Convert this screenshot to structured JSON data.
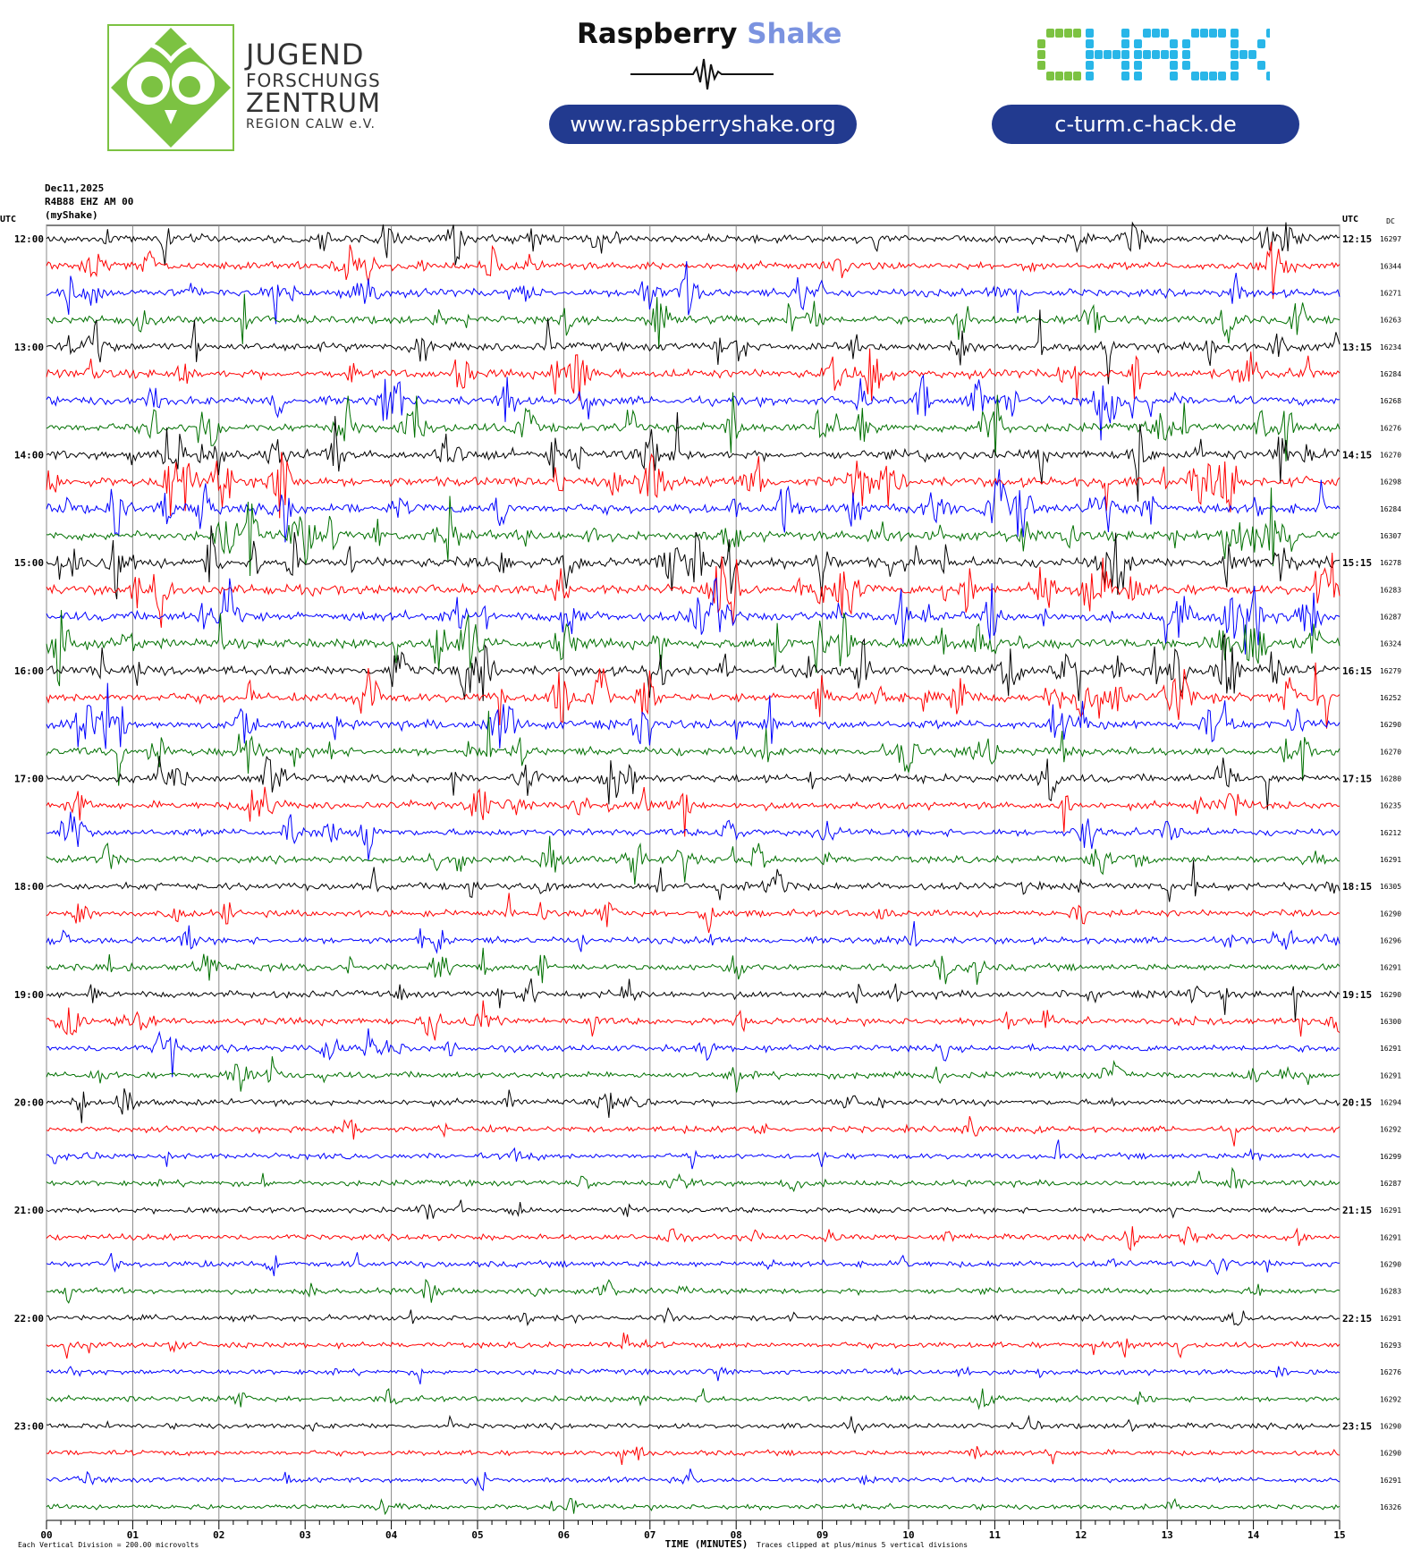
{
  "logos": {
    "jfz": {
      "lines": [
        "JUGEND",
        "FORSCHUNGS",
        "ZENTRUM",
        "REGION CALW e.V."
      ],
      "green": "#7cc242"
    },
    "raspberry_shake": {
      "word1": "Raspberry",
      "word2": "Shake",
      "url": "www.raspberryshake.org"
    },
    "chack": {
      "letters": [
        "C",
        "H",
        "A",
        "C",
        "K"
      ],
      "url": "c-turm.c-hack.de",
      "green": "#7cc242",
      "blue": "#29b6e8"
    },
    "pill_color": "#223a8f"
  },
  "header": {
    "date": "Dec11,2025",
    "station": "R4B88 EHZ AM 00",
    "network": "(myShake)"
  },
  "chart_data": {
    "type": "line",
    "title": "",
    "left_axis_label": "UTC",
    "right_axis_label": "UTC",
    "dc_label": "DC",
    "xlabel": "TIME (MINUTES)",
    "xlim": [
      0,
      15
    ],
    "x_ticks": [
      "00",
      "01",
      "02",
      "03",
      "04",
      "05",
      "06",
      "07",
      "08",
      "09",
      "10",
      "11",
      "12",
      "13",
      "14",
      "15"
    ],
    "left_hour_labels": [
      "12:00",
      "13:00",
      "14:00",
      "15:00",
      "16:00",
      "17:00",
      "18:00",
      "19:00",
      "20:00",
      "21:00",
      "22:00",
      "23:00"
    ],
    "right_labels": [
      "12:15",
      "13:15",
      "14:15",
      "15:15",
      "16:15",
      "17:15",
      "18:15",
      "19:15",
      "20:15",
      "21:15",
      "22:15",
      "23:15"
    ],
    "trace_colors": [
      "#000000",
      "#ff0000",
      "#0000ff",
      "#007000"
    ],
    "dc_offsets": [
      16297,
      16344,
      16271,
      16263,
      16234,
      16284,
      16268,
      16276,
      16270,
      16298,
      16284,
      16307,
      16278,
      16283,
      16287,
      16324,
      16279,
      16252,
      16290,
      16270,
      16280,
      16235,
      16212,
      16291,
      16305,
      16290,
      16296,
      16291,
      16290,
      16300,
      16291,
      16291,
      16294,
      16292,
      16299,
      16287,
      16291,
      16291,
      16290,
      16283,
      16291,
      16293,
      16276,
      16292,
      16290,
      16290,
      16291,
      16326
    ],
    "activity": [
      0.55,
      0.55,
      0.6,
      0.6,
      0.65,
      0.7,
      0.7,
      0.75,
      0.8,
      0.85,
      0.85,
      0.9,
      0.95,
      0.9,
      0.85,
      0.9,
      0.85,
      0.8,
      0.75,
      0.7,
      0.6,
      0.5,
      0.5,
      0.45,
      0.45,
      0.4,
      0.4,
      0.4,
      0.45,
      0.45,
      0.4,
      0.35,
      0.3,
      0.25,
      0.25,
      0.25,
      0.2,
      0.25,
      0.3,
      0.25,
      0.2,
      0.25,
      0.2,
      0.2,
      0.2,
      0.15,
      0.15,
      0.15
    ],
    "footer_left": "Each Vertical Division =  200.00 microvolts",
    "footer_right": "Traces clipped at plus/minus 5 vertical divisions",
    "grid": true
  }
}
